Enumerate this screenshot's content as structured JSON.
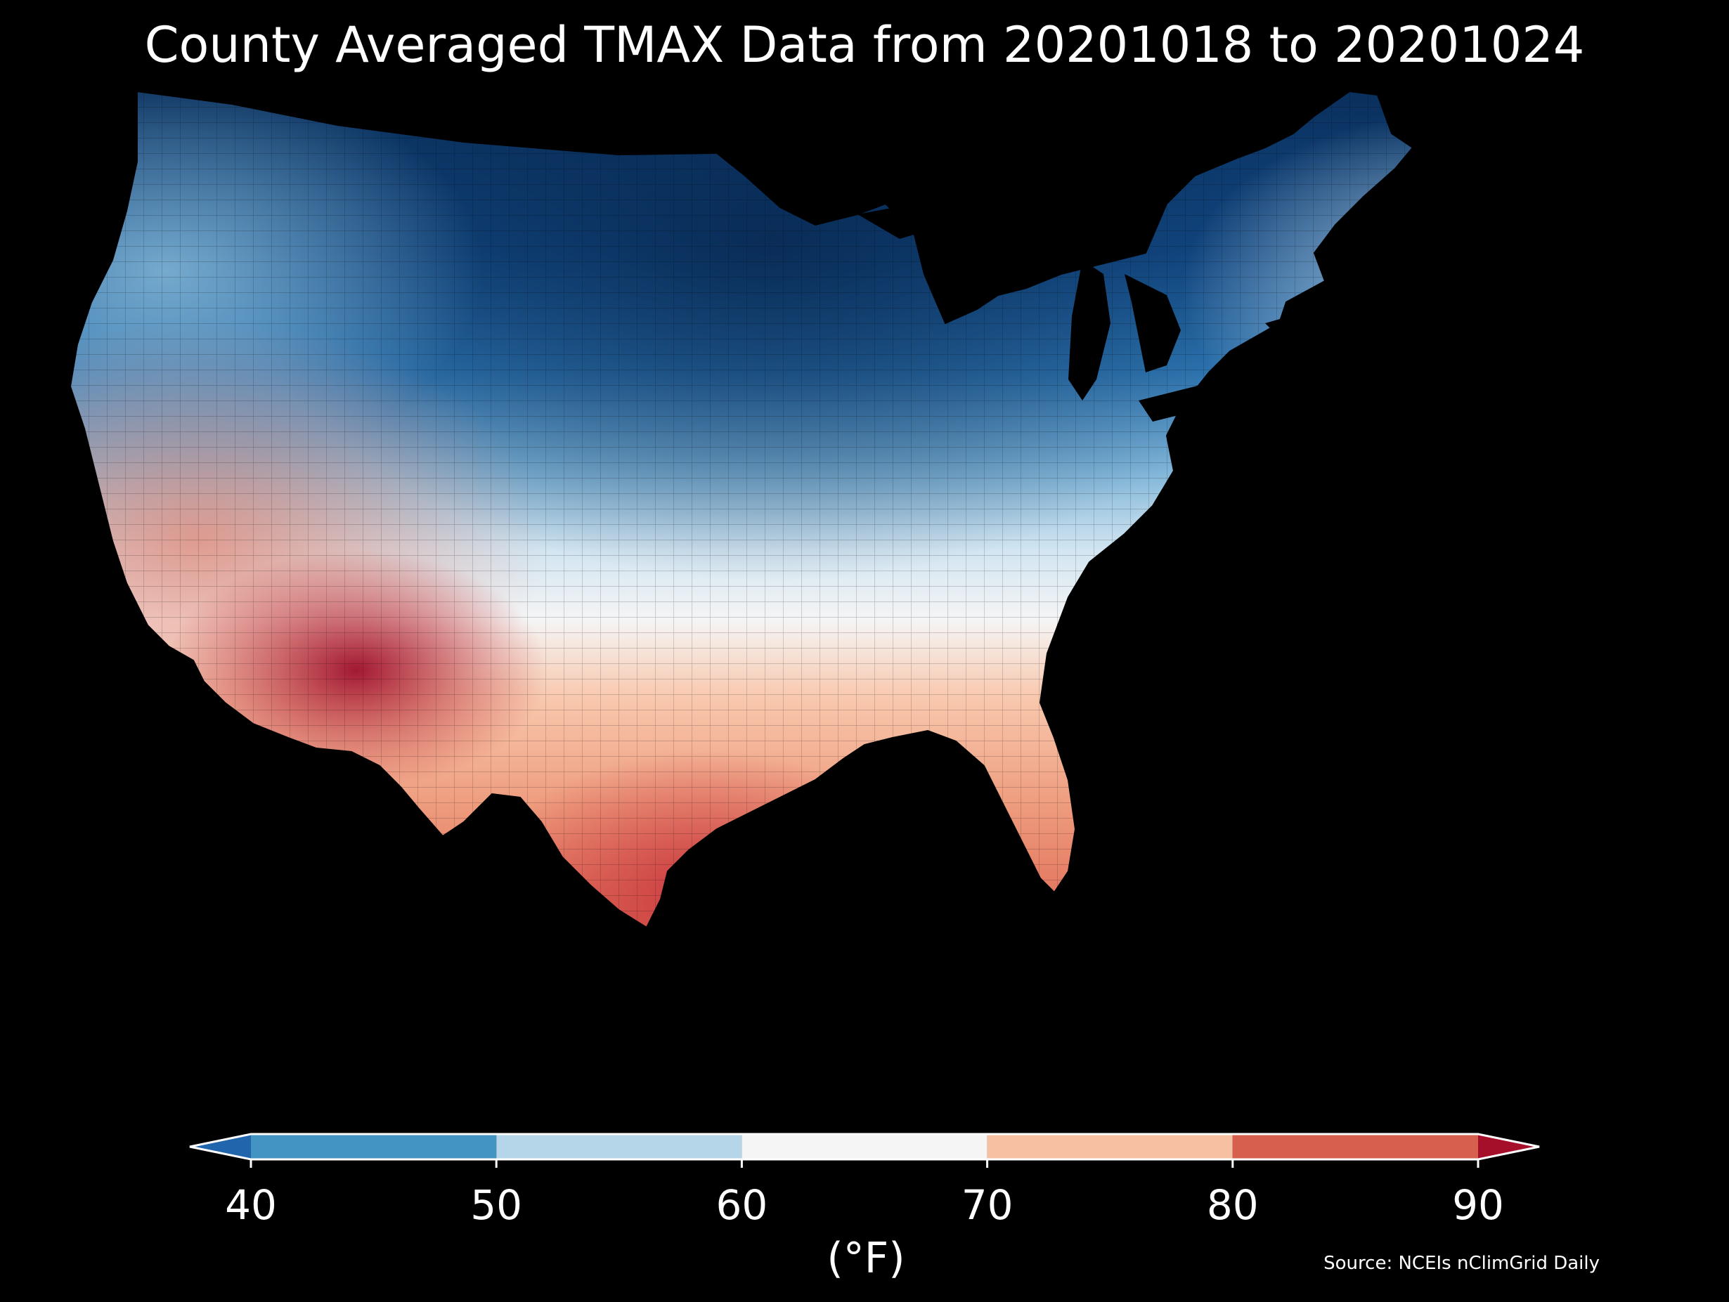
{
  "title": "County Averaged TMAX Data from 20201018 to 20201024",
  "colorbar": {
    "units_label": "(°F)",
    "ticks": [
      "40",
      "50",
      "60",
      "70",
      "80",
      "90"
    ],
    "extend": "both",
    "bins": [
      {
        "range": [
          40,
          50
        ],
        "color": "#4393c3"
      },
      {
        "range": [
          50,
          60
        ],
        "color": "#b5d6e9"
      },
      {
        "range": [
          60,
          70
        ],
        "color": "#f5f5f5"
      },
      {
        "range": [
          70,
          80
        ],
        "color": "#f8c0a2"
      },
      {
        "range": [
          80,
          90
        ],
        "color": "#d6604d"
      }
    ],
    "under_color": "#2166ac",
    "over_color": "#a50f2a"
  },
  "source": "Source: NCEIs nClimGrid Daily",
  "map": {
    "region": "Contiguous United States",
    "unit_shown": "counties",
    "variable": "TMAX",
    "pattern": "coldest across northern plains and upper midwest, warmest across desert southwest and south Texas"
  }
}
